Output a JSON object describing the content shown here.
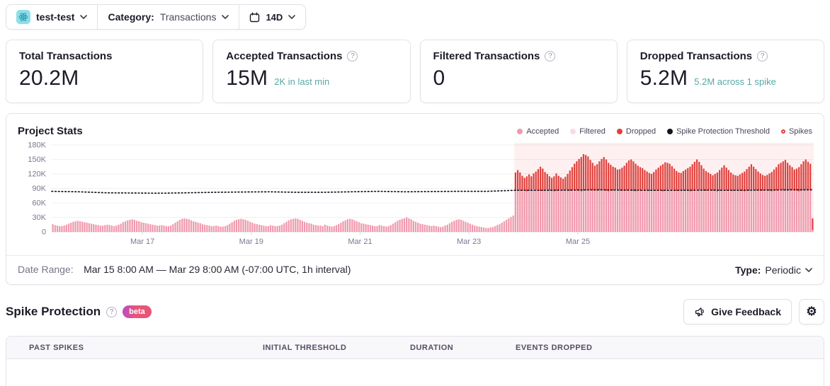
{
  "toolbar": {
    "project_name": "test-test",
    "project_platform_icon": "react",
    "category_label": "Category:",
    "category_value": "Transactions",
    "date_range_value": "14D"
  },
  "stat_cards": [
    {
      "title": "Total Transactions",
      "value": "20.2M"
    },
    {
      "title": "Accepted Transactions",
      "value": "15M",
      "sub": "2K in last min"
    },
    {
      "title": "Filtered Transactions",
      "value": "0"
    },
    {
      "title": "Dropped Transactions",
      "value": "5.2M",
      "sub": "5.2M across 1 spike"
    }
  ],
  "icons": {
    "help_glyph": "?",
    "gear_glyph": "⚙"
  },
  "chart_panel": {
    "title": "Project Stats",
    "legend": [
      {
        "label": "Accepted",
        "color": "#f099ad",
        "type": "dot"
      },
      {
        "label": "Filtered",
        "color": "#f8dce3",
        "type": "dot"
      },
      {
        "label": "Dropped",
        "color": "#e2403c",
        "type": "dot"
      },
      {
        "label": "Spike Protection Threshold",
        "color": "#17141f",
        "type": "dot"
      },
      {
        "label": "Spikes",
        "color": "#e2403c",
        "type": "ring"
      }
    ],
    "footer": {
      "date_range_label": "Date Range:",
      "date_range_value": "Mar 15 8:00 AM — Mar 29 8:00 AM (-07:00 UTC, 1h interval)",
      "type_label": "Type:",
      "type_value": "Periodic"
    }
  },
  "chart_data": {
    "type": "bar",
    "stacked": true,
    "title": "Project Stats",
    "interval": "1h",
    "x_start": "Mar 15 8:00 AM",
    "x_end": "Mar 29 8:00 AM",
    "total_bars": 336,
    "unit": "thousands of transactions per hour",
    "ymax": 195,
    "ytick_values": [
      0,
      30,
      60,
      90,
      120,
      150,
      180
    ],
    "ytick_labels": [
      "0",
      "30K",
      "60K",
      "90K",
      "120K",
      "150K",
      "180K"
    ],
    "xticks": [
      {
        "label": "Mar 17",
        "hour": 40
      },
      {
        "label": "Mar 19",
        "hour": 88
      },
      {
        "label": "Mar 21",
        "hour": 136
      },
      {
        "label": "Mar 23",
        "hour": 184
      },
      {
        "label": "Mar 25",
        "hour": 232
      }
    ],
    "spike_region": {
      "start_hour": 204,
      "end_hour": 336,
      "spike_count": 1,
      "events_dropped_total": "5.2M"
    },
    "series": {
      "filtered_constant": 0,
      "accepted_daily_pre_spike": [
        [
          16,
          14,
          13,
          12,
          12,
          13,
          15,
          17,
          19,
          21,
          22,
          23,
          22,
          21,
          20,
          19,
          18,
          17,
          16,
          15,
          14,
          13,
          13,
          14
        ],
        [
          15,
          14,
          13,
          12,
          13,
          15,
          17,
          20,
          22,
          24,
          25,
          26,
          25,
          23,
          22,
          20,
          19,
          18,
          17,
          16,
          15,
          14,
          13,
          13
        ],
        [
          14,
          13,
          12,
          12,
          13,
          16,
          19,
          22,
          25,
          27,
          28,
          27,
          26,
          24,
          22,
          21,
          19,
          18,
          16,
          15,
          14,
          13,
          12,
          12
        ],
        [
          13,
          12,
          11,
          11,
          12,
          14,
          17,
          20,
          23,
          25,
          26,
          27,
          26,
          25,
          23,
          21,
          19,
          17,
          16,
          15,
          14,
          13,
          12,
          12
        ],
        [
          14,
          13,
          12,
          12,
          13,
          15,
          18,
          21,
          24,
          26,
          27,
          28,
          27,
          25,
          23,
          21,
          19,
          18,
          17,
          15,
          14,
          13,
          13,
          12
        ],
        [
          15,
          13,
          12,
          11,
          12,
          14,
          16,
          19,
          22,
          24,
          26,
          27,
          26,
          24,
          22,
          20,
          18,
          17,
          16,
          15,
          14,
          13,
          12,
          12
        ],
        [
          14,
          13,
          12,
          11,
          12,
          14,
          17,
          20,
          23,
          25,
          27,
          28,
          30,
          28,
          26,
          23,
          21,
          19,
          17,
          16,
          15,
          14,
          13,
          12
        ],
        [
          13,
          12,
          11,
          10,
          11,
          13,
          15,
          18,
          21,
          23,
          25,
          26,
          25,
          23,
          21,
          19,
          17,
          15,
          13,
          12,
          11,
          10,
          9,
          8
        ],
        [
          8,
          9,
          10,
          12,
          14,
          16,
          19,
          22,
          25,
          28,
          31,
          34
        ]
      ],
      "accepted_during_spike": [
        85,
        86,
        87,
        86,
        85,
        84,
        85,
        86,
        88,
        87,
        86,
        85,
        85,
        86,
        87,
        86,
        85,
        84,
        85,
        86,
        88,
        87,
        86,
        85,
        85,
        86,
        87,
        86,
        85,
        84,
        85,
        86,
        88,
        87,
        86,
        85,
        85,
        86,
        87,
        86,
        85,
        84,
        85,
        86,
        88,
        87,
        86,
        85,
        85,
        86,
        87,
        86,
        85,
        84,
        85,
        86,
        88,
        87,
        86,
        85,
        85,
        86,
        87,
        86,
        85,
        84,
        85,
        86,
        88,
        87,
        86,
        85,
        85,
        86,
        87,
        86,
        85,
        84,
        85,
        86,
        88,
        87,
        86,
        85,
        85,
        86,
        87,
        86,
        85,
        84,
        85,
        86,
        88,
        87,
        86,
        85,
        85,
        86,
        87,
        86,
        85,
        84,
        85,
        86,
        88,
        87,
        86,
        85,
        85,
        86,
        87,
        86,
        85,
        84,
        85,
        86,
        88,
        87,
        86,
        85,
        85,
        86,
        87,
        86,
        85,
        84,
        85,
        86,
        88,
        87,
        86,
        85
      ],
      "dropped_during_spike": [
        38,
        42,
        36,
        30,
        27,
        31,
        34,
        29,
        33,
        38,
        44,
        50,
        46,
        38,
        33,
        29,
        27,
        31,
        36,
        30,
        25,
        23,
        28,
        35,
        42,
        48,
        54,
        60,
        66,
        71,
        76,
        73,
        68,
        62,
        57,
        52,
        55,
        60,
        64,
        69,
        65,
        59,
        54,
        49,
        45,
        42,
        44,
        48,
        52,
        57,
        61,
        64,
        61,
        57,
        52,
        48,
        44,
        41,
        39,
        37,
        35,
        38,
        42,
        47,
        52,
        56,
        59,
        57,
        53,
        49,
        45,
        41,
        38,
        36,
        39,
        43,
        47,
        51,
        55,
        59,
        62,
        58,
        52,
        46,
        41,
        37,
        33,
        31,
        35,
        39,
        43,
        47,
        50,
        46,
        42,
        38,
        34,
        31,
        29,
        33,
        37,
        41,
        45,
        49,
        52,
        48,
        44,
        40,
        36,
        32,
        29,
        32,
        36,
        40,
        44,
        48,
        52,
        56,
        60,
        64,
        58,
        52,
        47,
        43,
        46,
        50,
        55,
        60,
        62,
        58,
        55,
        26
      ],
      "threshold_points": [
        [
          0,
          84
        ],
        [
          12,
          83
        ],
        [
          24,
          81
        ],
        [
          36,
          80.5
        ],
        [
          48,
          80
        ],
        [
          60,
          81
        ],
        [
          72,
          82
        ],
        [
          84,
          82.5
        ],
        [
          96,
          83
        ],
        [
          108,
          82
        ],
        [
          120,
          82
        ],
        [
          132,
          83
        ],
        [
          144,
          84
        ],
        [
          156,
          83
        ],
        [
          168,
          83.5
        ],
        [
          180,
          84
        ],
        [
          192,
          84
        ],
        [
          204,
          86
        ],
        [
          216,
          86
        ],
        [
          228,
          86.5
        ],
        [
          240,
          87
        ],
        [
          252,
          86.5
        ],
        [
          264,
          86
        ],
        [
          276,
          86
        ],
        [
          288,
          86.5
        ],
        [
          300,
          86
        ],
        [
          312,
          86.5
        ],
        [
          324,
          87
        ],
        [
          336,
          87
        ]
      ]
    },
    "final_partial_bar": {
      "accepted": 4,
      "dropped": 24
    },
    "colors": {
      "accepted": "#f099ad",
      "filtered": "#f8dce3",
      "dropped": "#e0423e",
      "threshold": "#17141f",
      "spike_region_fill": "rgba(242,105,112,0.10)",
      "grid": "#f1eff4",
      "axis": "#dcd9e2",
      "tick_text": "#7d7790"
    }
  },
  "spike_protection": {
    "title": "Spike Protection",
    "beta_label": "beta",
    "feedback_button_label": "Give Feedback"
  },
  "table": {
    "headers": [
      "PAST SPIKES",
      "INITIAL THRESHOLD",
      "DURATION",
      "EVENTS DROPPED"
    ]
  }
}
